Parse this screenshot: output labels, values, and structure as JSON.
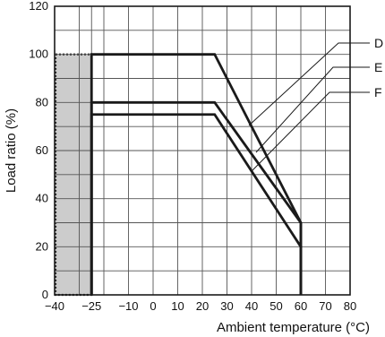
{
  "chart_data": {
    "type": "line",
    "xlabel": "Ambient temperature (°C)",
    "ylabel": "Load ratio (%)",
    "xlim": [
      -40,
      80
    ],
    "ylim": [
      0,
      120
    ],
    "x_ticks": [
      -40,
      -30,
      -25,
      -20,
      -10,
      0,
      10,
      20,
      30,
      40,
      50,
      60,
      70,
      80
    ],
    "x_tick_labels": [
      "−40",
      "",
      "−25",
      "",
      "−10",
      "0",
      "10",
      "20",
      "30",
      "40",
      "50",
      "60",
      "70",
      "80"
    ],
    "y_ticks": [
      0,
      20,
      40,
      60,
      80,
      100,
      120
    ],
    "y_tick_labels": [
      "0",
      "20",
      "40",
      "60",
      "80",
      "100",
      "120"
    ],
    "grid": true,
    "shaded_region": {
      "x": [
        -40,
        -25
      ],
      "y": [
        0,
        100
      ],
      "fill": "#cccccc",
      "border": "dotted"
    },
    "series": [
      {
        "name": "D",
        "x": [
          -25,
          -25,
          25,
          60,
          60
        ],
        "y": [
          0,
          100,
          100,
          30,
          0
        ]
      },
      {
        "name": "E",
        "x": [
          -25,
          -25,
          25,
          60,
          60
        ],
        "y": [
          0,
          80,
          80,
          30,
          0
        ]
      },
      {
        "name": "F",
        "x": [
          -25,
          -25,
          25,
          60,
          60
        ],
        "y": [
          0,
          75,
          75,
          20,
          0
        ]
      }
    ],
    "colors": {
      "line": "#1a1a1a",
      "grid": "#555555",
      "shade": "#cccccc"
    }
  }
}
